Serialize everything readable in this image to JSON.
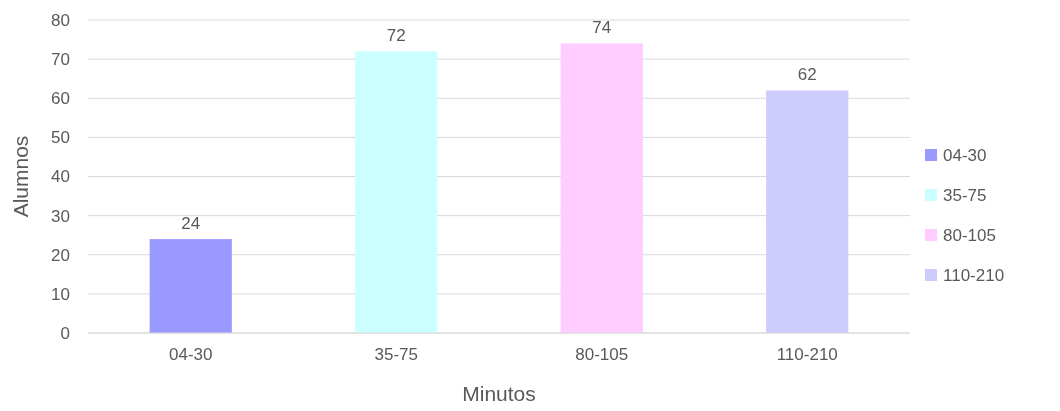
{
  "chart_data": {
    "type": "bar",
    "xlabel": "Minutos",
    "ylabel": "Alumnos",
    "categories": [
      "04-30",
      "35-75",
      "80-105",
      "110-210"
    ],
    "stacked": true,
    "series": [
      {
        "name": "04-30",
        "color": "#9999ff",
        "values": [
          24,
          null,
          null,
          null
        ]
      },
      {
        "name": "35-75",
        "color": "#ccffff",
        "values": [
          null,
          72,
          null,
          null
        ]
      },
      {
        "name": "80-105",
        "color": "#ffccff",
        "values": [
          null,
          null,
          74,
          null
        ]
      },
      {
        "name": "110-210",
        "color": "#ccccff",
        "values": [
          null,
          null,
          null,
          62
        ]
      }
    ],
    "ylim": [
      0,
      80
    ],
    "yticks": [
      0,
      10,
      20,
      30,
      40,
      50,
      60,
      70,
      80
    ],
    "grid": "y",
    "legend": "right",
    "data_labels": true
  }
}
